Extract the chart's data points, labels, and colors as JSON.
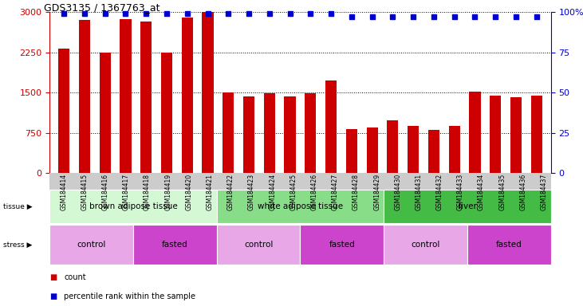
{
  "title": "GDS3135 / 1367763_at",
  "samples": [
    "GSM184414",
    "GSM184415",
    "GSM184416",
    "GSM184417",
    "GSM184418",
    "GSM184419",
    "GSM184420",
    "GSM184421",
    "GSM184422",
    "GSM184423",
    "GSM184424",
    "GSM184425",
    "GSM184426",
    "GSM184427",
    "GSM184428",
    "GSM184429",
    "GSM184430",
    "GSM184431",
    "GSM184432",
    "GSM184433",
    "GSM184434",
    "GSM184435",
    "GSM184436",
    "GSM184437"
  ],
  "counts": [
    2320,
    2850,
    2250,
    2870,
    2830,
    2250,
    2900,
    3000,
    1500,
    1430,
    1490,
    1430,
    1490,
    1720,
    820,
    850,
    980,
    870,
    800,
    870,
    1510,
    1450,
    1410,
    1450
  ],
  "percentile_ranks": [
    99,
    99,
    99,
    99,
    99,
    99,
    99,
    99,
    99,
    99,
    99,
    99,
    99,
    99,
    97,
    97,
    97,
    97,
    97,
    97,
    97,
    97,
    97,
    97
  ],
  "bar_color": "#cc0000",
  "dot_color": "#0000cc",
  "ylim_left": [
    0,
    3000
  ],
  "ylim_right": [
    0,
    100
  ],
  "yticks_left": [
    0,
    750,
    1500,
    2250,
    3000
  ],
  "yticks_right": [
    0,
    25,
    50,
    75,
    100
  ],
  "tissue_groups": [
    {
      "label": "brown adipose tissue",
      "start": 0,
      "end": 7,
      "color": "#d4f7d4"
    },
    {
      "label": "white adipose tissue",
      "start": 8,
      "end": 15,
      "color": "#88dd88"
    },
    {
      "label": "liver",
      "start": 16,
      "end": 23,
      "color": "#44bb44"
    }
  ],
  "stress_groups": [
    {
      "label": "control",
      "start": 0,
      "end": 3,
      "color": "#e8a8e8"
    },
    {
      "label": "fasted",
      "start": 4,
      "end": 7,
      "color": "#cc44cc"
    },
    {
      "label": "control",
      "start": 8,
      "end": 11,
      "color": "#e8a8e8"
    },
    {
      "label": "fasted",
      "start": 12,
      "end": 15,
      "color": "#cc44cc"
    },
    {
      "label": "control",
      "start": 16,
      "end": 19,
      "color": "#e8a8e8"
    },
    {
      "label": "fasted",
      "start": 20,
      "end": 23,
      "color": "#cc44cc"
    }
  ],
  "plot_bg": "#ffffff",
  "xtick_bg": "#cccccc"
}
